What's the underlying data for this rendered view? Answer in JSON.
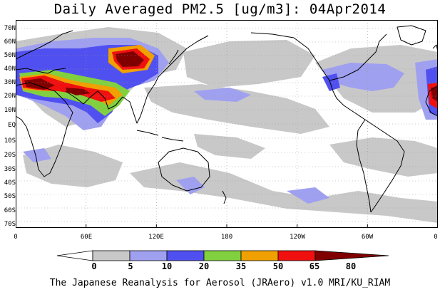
{
  "title": "Daily Averaged PM2.5 [ug/m3]: 04Apr2014",
  "footer": "The Japanese Reanalysis for Aerosol (JRAero) v1.0 MRI/KU_RIAM",
  "lat_labels": [
    "70N",
    "60N",
    "50N",
    "40N",
    "30N",
    "20N",
    "10N",
    "EQ",
    "10S",
    "20S",
    "30S",
    "40S",
    "50S",
    "60S",
    "70S"
  ],
  "lon_labels": [
    "0",
    "60E",
    "120E",
    "180",
    "120W",
    "60W",
    "0"
  ],
  "colorbar": {
    "levels": [
      "0",
      "5",
      "10",
      "20",
      "35",
      "50",
      "65",
      "80"
    ],
    "colors": [
      "#ffffff",
      "#c8c8c8",
      "#a0a0f0",
      "#5050f0",
      "#80d040",
      "#f0a000",
      "#f01010",
      "#800000"
    ]
  },
  "map_colors": {
    "ocean_bg": "#ffffff",
    "coast": "#000000",
    "grid": "#999999"
  }
}
